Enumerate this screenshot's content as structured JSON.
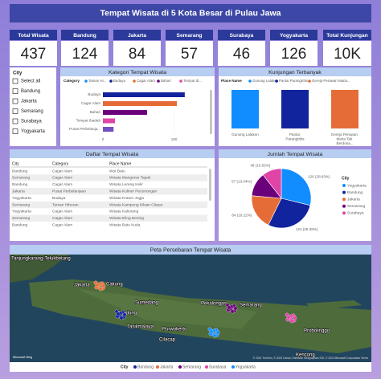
{
  "title": "Tempat Wisata di 5 Kota Besar di Pulau Jawa",
  "kpis": [
    {
      "label": "Total Wisata",
      "value": 437
    },
    {
      "label": "Bandung",
      "value": 124
    },
    {
      "label": "Jakarta",
      "value": 84
    },
    {
      "label": "Semarang",
      "value": 57
    },
    {
      "label": "Surabaya",
      "value": 46
    },
    {
      "label": "Yogyakarta",
      "value": 126
    },
    {
      "label": "Total Kunjungan",
      "value": "10K"
    }
  ],
  "slicer": {
    "title": "City",
    "items": [
      "Select all",
      "Bandung",
      "Jakarta",
      "Semarang",
      "Surabaya",
      "Yogyakarta"
    ]
  },
  "chart_data": [
    {
      "type": "hbar",
      "title": "Kategori Tempat Wisata",
      "legend_title": "Category",
      "legend": [
        {
          "name": "Taman Hi...",
          "color": "#118dff"
        },
        {
          "name": "Budaya",
          "color": "#12239e"
        },
        {
          "name": "Cagar Alam",
          "color": "#e66c37"
        },
        {
          "name": "Bahari",
          "color": "#6b007b"
        },
        {
          "name": "Tempat Ib...",
          "color": "#e044a7"
        }
      ],
      "categories": [
        "Budaya",
        "Cagar Alam",
        "Bahari",
        "Tempat Ibadah",
        "Pusat Perbelanja..."
      ],
      "values": [
        115,
        104,
        62,
        17,
        15
      ],
      "colors": [
        "#12239e",
        "#e66c37",
        "#6b007b",
        "#e044a7",
        "#744ec2"
      ],
      "xlim": [
        0,
        140
      ],
      "xticks": [
        0,
        100
      ]
    },
    {
      "type": "column",
      "title": "Kunjungan Terbanyak",
      "legend_title": "Place Name",
      "legend": [
        {
          "name": "Gunung Lalakon",
          "color": "#118dff"
        },
        {
          "name": "Pantai Parangtritis",
          "color": "#12239e"
        },
        {
          "name": "Gereja Perawan Maria...",
          "color": "#e66c37"
        }
      ],
      "categories": [
        "Gunung Lalakon",
        "Pantai Parangtritis",
        "Gereja Perawan Maria Tak Berdosa..."
      ],
      "values": [
        5,
        5,
        5
      ],
      "colors": [
        "#118dff",
        "#12239e",
        "#e66c37"
      ]
    },
    {
      "type": "pie",
      "title": "Jumlah Tempat Wisata",
      "legend_title": "City",
      "categories": [
        "Yogyakarta",
        "Bandung",
        "Jakarta",
        "Semarang",
        "Surabaya"
      ],
      "values": [
        126,
        124,
        84,
        57,
        46
      ],
      "value_labels": [
        "126 (28.83%)",
        "124 (28.38%)",
        "84 (19.22%)",
        "57 (13.04%)",
        "46 (10.53%)"
      ],
      "colors": [
        "#118dff",
        "#12239e",
        "#e66c37",
        "#6b007b",
        "#e044a7"
      ]
    }
  ],
  "table": {
    "title": "Daftar Tempat Wisata",
    "columns": [
      "City",
      "Category",
      "Place Name"
    ],
    "rows": [
      [
        "Bandung",
        "Cagar Alam",
        "Wot Batu"
      ],
      [
        "Semarang",
        "Cagar Alam",
        "Wisata Mangrove Tapak"
      ],
      [
        "Bandung",
        "Cagar Alam",
        "Wisata Lereng Kelir"
      ],
      [
        "Jakarta",
        "Pusat Perbelanjaan",
        "Wisata Kuliner Pecenongan"
      ],
      [
        "Yogyakarta",
        "Budaya",
        "Wisata Kraton Jogja"
      ],
      [
        "Semarang",
        "Taman Hiburan",
        "Wisata Kampung Kilsan Clepar"
      ],
      [
        "Yogyakarta",
        "Cagar Alam",
        "Wisata Kaliurang"
      ],
      [
        "Semarang",
        "Cagar Alam",
        "Wisata Eling Bening"
      ],
      [
        "Bandung",
        "Cagar Alam",
        "Wisata Batu Kuda"
      ]
    ]
  },
  "map": {
    "title": "Peta Persebaran Tempat Wisata",
    "places": [
      "Tanjungkarang-Telukbetung",
      "Jakarta",
      "Cakung",
      "Sumedang",
      "Pekalongan",
      "Semarang",
      "Bandung",
      "Tasikmalaya",
      "Purwokerto",
      "Cilacap",
      "Probolinggo",
      "Kencong"
    ],
    "logo": "Microsoft Bing",
    "attribution": "© 2024 TomTom, © 2024 Ocean, Earthstar Geographics SIO, © 2024 Microsoft Corporation Terms",
    "legend_title": "City",
    "legend": [
      {
        "name": "Bandung",
        "color": "#12239e"
      },
      {
        "name": "Jakarta",
        "color": "#e66c37"
      },
      {
        "name": "Semarang",
        "color": "#6b007b"
      },
      {
        "name": "Surabaya",
        "color": "#e044a7"
      },
      {
        "name": "Yogyakarta",
        "color": "#118dff"
      }
    ]
  }
}
